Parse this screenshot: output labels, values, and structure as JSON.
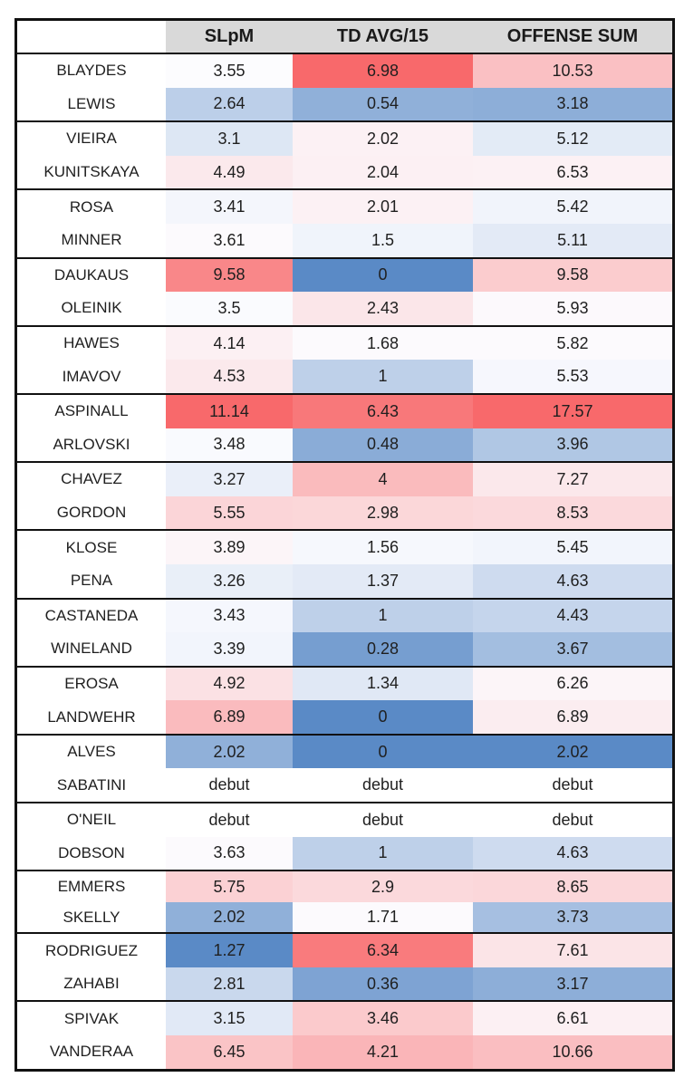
{
  "chart_data": {
    "type": "heatmap",
    "title": "",
    "columns": [
      "SLpM",
      "TD AVG/15",
      "OFFENSE SUM"
    ],
    "legend": "none",
    "color_scale": {
      "min_color": "#5A8AC6",
      "mid_color": "#FCFCFF",
      "max_color": "#F8696B",
      "applied": "per column"
    },
    "header_bg": "#D9D9D9",
    "border_color": "#111111",
    "rows": [
      {
        "name": "BLAYDES",
        "values": [
          "3.55",
          "6.98",
          "10.53"
        ],
        "colors": [
          "#FCFCFE",
          "#F8696B",
          "#FAC0C3"
        ]
      },
      {
        "name": "LEWIS",
        "values": [
          "2.64",
          "0.54",
          "3.18"
        ],
        "colors": [
          "#BCCFE9",
          "#90B0D9",
          "#8DAED8"
        ]
      },
      {
        "name": "VIEIRA",
        "values": [
          "3.1",
          "2.02",
          "5.12"
        ],
        "colors": [
          "#DDE7F4",
          "#FCF1F4",
          "#E3EBF6"
        ]
      },
      {
        "name": "KUNITSKAYA",
        "values": [
          "4.49",
          "2.04",
          "6.53"
        ],
        "colors": [
          "#FBE9EC",
          "#FCF0F3",
          "#FCF1F4"
        ]
      },
      {
        "name": "ROSA",
        "values": [
          "3.41",
          "2.01",
          "5.42"
        ],
        "colors": [
          "#F4F6FC",
          "#FCF1F4",
          "#F1F4FB"
        ]
      },
      {
        "name": "MINNER",
        "values": [
          "3.61",
          "1.5",
          "5.11"
        ],
        "colors": [
          "#FCFAFD",
          "#F0F4FB",
          "#E3EAF6"
        ]
      },
      {
        "name": "DAUKAUS",
        "values": [
          "9.58",
          "0",
          "9.58"
        ],
        "colors": [
          "#F98789",
          "#5A8AC6",
          "#FBCCCE"
        ]
      },
      {
        "name": "OLEINIK",
        "values": [
          "3.5",
          "2.43",
          "5.93"
        ],
        "colors": [
          "#FAFBFE",
          "#FBE6E9",
          "#FCF9FC"
        ]
      },
      {
        "name": "HAWES",
        "values": [
          "4.14",
          "1.68",
          "5.82"
        ],
        "colors": [
          "#FCF0F3",
          "#FCFAFD",
          "#FCFAFD"
        ]
      },
      {
        "name": "IMAVOV",
        "values": [
          "4.53",
          "1",
          "5.53"
        ],
        "colors": [
          "#FBE9EC",
          "#BED0E9",
          "#F6F7FD"
        ]
      },
      {
        "name": "ASPINALL",
        "values": [
          "11.14",
          "6.43",
          "17.57"
        ],
        "colors": [
          "#F8696B",
          "#F8787A",
          "#F8696B"
        ]
      },
      {
        "name": "ARLOVSKI",
        "values": [
          "3.48",
          "0.48",
          "3.96"
        ],
        "colors": [
          "#F9FAFE",
          "#8AACD7",
          "#B0C7E4"
        ]
      },
      {
        "name": "CHAVEZ",
        "values": [
          "3.27",
          "4",
          "7.27"
        ],
        "colors": [
          "#EAEFF9",
          "#FABBBD",
          "#FBE8EB"
        ]
      },
      {
        "name": "GORDON",
        "values": [
          "5.55",
          "2.98",
          "8.53"
        ],
        "colors": [
          "#FBD5D8",
          "#FBD7D9",
          "#FBD9DC"
        ]
      },
      {
        "name": "KLOSE",
        "values": [
          "3.89",
          "1.56",
          "5.45"
        ],
        "colors": [
          "#FCF5F8",
          "#F6F8FD",
          "#F2F5FC"
        ]
      },
      {
        "name": "PENA",
        "values": [
          "3.26",
          "1.37",
          "4.63"
        ],
        "colors": [
          "#E9EFF8",
          "#E3EAF6",
          "#CEDBEF"
        ]
      },
      {
        "name": "CASTANEDA",
        "values": [
          "3.43",
          "1",
          "4.43"
        ],
        "colors": [
          "#F5F7FD",
          "#BED0E9",
          "#C5D5EC"
        ]
      },
      {
        "name": "WINELAND",
        "values": [
          "3.39",
          "0.28",
          "3.67"
        ],
        "colors": [
          "#F2F5FC",
          "#769ED0",
          "#A3BEE0"
        ]
      },
      {
        "name": "EROSA",
        "values": [
          "4.92",
          "1.34",
          "6.26"
        ],
        "colors": [
          "#FBE1E4",
          "#E0E8F5",
          "#FCF5F8"
        ]
      },
      {
        "name": "LANDWEHR",
        "values": [
          "6.89",
          "0",
          "6.89"
        ],
        "colors": [
          "#FABBBE",
          "#5A8AC6",
          "#FBEDF0"
        ]
      },
      {
        "name": "ALVES",
        "values": [
          "2.02",
          "0",
          "2.02"
        ],
        "colors": [
          "#90B0D9",
          "#5A8AC6",
          "#5A8AC6"
        ]
      },
      {
        "name": "SABATINI",
        "values": [
          "debut",
          "debut",
          "debut"
        ],
        "colors": [
          "#FFFFFF",
          "#FFFFFF",
          "#FFFFFF"
        ]
      },
      {
        "name": "O'NEIL",
        "values": [
          "debut",
          "debut",
          "debut"
        ],
        "colors": [
          "#FFFFFF",
          "#FFFFFF",
          "#FFFFFF"
        ]
      },
      {
        "name": "DOBSON",
        "values": [
          "3.63",
          "1",
          "4.63"
        ],
        "colors": [
          "#FCFAFD",
          "#BED0E9",
          "#CEDBEF"
        ]
      },
      {
        "name": "EMMERS",
        "values": [
          "5.75",
          "2.9",
          "8.65"
        ],
        "colors": [
          "#FBD1D4",
          "#FBD9DC",
          "#FBD7DA"
        ],
        "short": true
      },
      {
        "name": "SKELLY",
        "values": [
          "2.02",
          "1.71",
          "3.73"
        ],
        "colors": [
          "#90B0D9",
          "#FCFAFD",
          "#A6BFE1"
        ],
        "short": true
      },
      {
        "name": "RODRIGUEZ",
        "values": [
          "1.27",
          "6.34",
          "7.61"
        ],
        "colors": [
          "#5A8AC6",
          "#F97B7D",
          "#FBE4E7"
        ]
      },
      {
        "name": "ZAHABI",
        "values": [
          "2.81",
          "0.36",
          "3.17"
        ],
        "colors": [
          "#C9D8ED",
          "#7EA3D3",
          "#8DAED8"
        ]
      },
      {
        "name": "SPIVAK",
        "values": [
          "3.15",
          "3.46",
          "6.61"
        ],
        "colors": [
          "#E1E9F6",
          "#FBCACC",
          "#FCF0F3"
        ]
      },
      {
        "name": "VANDERAA",
        "values": [
          "6.45",
          "4.21",
          "10.66"
        ],
        "colors": [
          "#FAC4C6",
          "#FAB5B8",
          "#FABEC1"
        ]
      }
    ]
  }
}
